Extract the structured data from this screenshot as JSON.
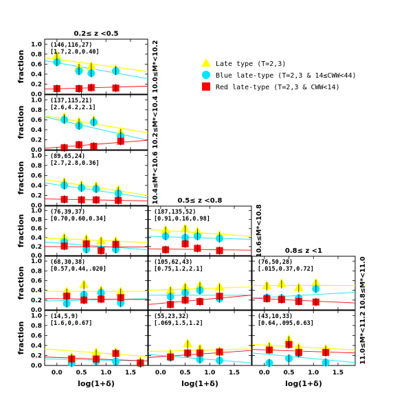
{
  "chart_data": {
    "type": "scatter",
    "xlabel": "log(1+δ)",
    "ylabel": "fraction",
    "xlim": [
      -0.25,
      1.85
    ],
    "ylim": [
      0,
      1.1
    ],
    "x_ticks": [
      "0.0",
      "0.5",
      "1.0",
      "1.5"
    ],
    "y_ticks": [
      "0.0",
      "0.2",
      "0.4",
      "0.6",
      "0.8",
      "1.0"
    ],
    "column_titles": [
      "0.2≤ z <0.5",
      "0.5≤ z <0.8",
      "0.8≤ z <1"
    ],
    "row_labels": [
      "10.0≤M*<10.2",
      "10.2≤M*<10.4",
      "10.4≤M*<10.6",
      "10.6≤M*<10.8",
      "10.8≤M*<11.0",
      "11.0≤M*<11.2"
    ],
    "legend": [
      {
        "name": "Late type (T=2,3)",
        "color": "#ffff00",
        "marker": "triangle"
      },
      {
        "name": "Blue late-type (T=2,3 & 14≤CWW<44)",
        "color": "#00e5ff",
        "marker": "circle"
      },
      {
        "name": "Red late-type (T=2,3 & CWW<14)",
        "color": "#ff0000",
        "marker": "square"
      }
    ],
    "panels": [
      {
        "row": 0,
        "col": 0,
        "ann1": "(146,116,27)",
        "ann2": "[1.7,2.0,0.40]",
        "late": {
          "x": [
            0.0,
            0.45,
            0.7,
            1.2
          ],
          "y": [
            0.75,
            0.52,
            0.54,
            0.48
          ]
        },
        "blue": {
          "x": [
            0.0,
            0.45,
            0.7,
            1.2
          ],
          "y": [
            0.64,
            0.46,
            0.42,
            0.46
          ]
        },
        "red": {
          "x": [
            0.0,
            0.45,
            0.7,
            1.2
          ],
          "y": [
            0.11,
            0.11,
            0.13,
            0.12
          ]
        },
        "fit_late": [
          0.73,
          0.45
        ],
        "fit_blue": [
          0.67,
          0.31
        ],
        "fit_red": [
          0.1,
          0.16
        ]
      },
      {
        "row": 1,
        "col": 0,
        "ann1": "(137,115,21)",
        "ann2": "[2.6,4.2,2.1]",
        "late": {
          "x": [
            0.15,
            0.45,
            0.75,
            1.3
          ],
          "y": [
            0.63,
            0.54,
            0.58,
            0.33
          ]
        },
        "blue": {
          "x": [
            0.15,
            0.45,
            0.75,
            1.3
          ],
          "y": [
            0.6,
            0.48,
            0.55,
            0.27
          ]
        },
        "red": {
          "x": [
            0.15,
            0.45,
            0.75,
            1.3
          ],
          "y": [
            0.04,
            0.1,
            0.07,
            0.17
          ]
        },
        "fit_late": [
          0.68,
          0.34
        ],
        "fit_blue": [
          0.66,
          0.19
        ],
        "fit_red": [
          0.03,
          0.19
        ]
      },
      {
        "row": 2,
        "col": 0,
        "ann1": "(89,65,24)",
        "ann2": "[2.7,2.8,0.36]",
        "late": {
          "x": [
            0.15,
            0.5,
            0.8,
            1.25
          ],
          "y": [
            0.45,
            0.39,
            0.37,
            0.29
          ]
        },
        "blue": {
          "x": [
            0.15,
            0.5,
            0.8,
            1.25
          ],
          "y": [
            0.4,
            0.35,
            0.33,
            0.24
          ]
        },
        "red": {
          "x": [
            0.15,
            0.5,
            0.8,
            1.25
          ],
          "y": [
            0.12,
            0.11,
            0.11,
            0.1
          ]
        },
        "fit_late": [
          0.52,
          0.2
        ],
        "fit_blue": [
          0.45,
          0.15
        ],
        "fit_red": [
          0.13,
          0.09
        ]
      },
      {
        "row": 3,
        "col": 0,
        "ann1": "(76,39,37)",
        "ann2": "[0.70,0.60,0.34]",
        "late": {
          "x": [
            0.15,
            0.6,
            0.9,
            1.2
          ],
          "y": [
            0.38,
            0.35,
            0.31,
            0.3
          ]
        },
        "blue": {
          "x": [
            0.15,
            0.6,
            0.9,
            1.2
          ],
          "y": [
            0.3,
            0.14,
            0.14,
            0.14
          ]
        },
        "red": {
          "x": [
            0.15,
            0.6,
            0.9,
            1.2
          ],
          "y": [
            0.21,
            0.26,
            0.11,
            0.25
          ]
        },
        "fit_late": [
          0.39,
          0.29
        ],
        "fit_blue": [
          0.3,
          0.13
        ],
        "fit_red": [
          0.2,
          0.19
        ]
      },
      {
        "row": 4,
        "col": 0,
        "ann1": "(68,30,38)",
        "ann2": "[0.57,0.44,.020]",
        "late": {
          "x": [
            0.2,
            0.55,
            0.9,
            1.3
          ],
          "y": [
            0.35,
            0.5,
            0.38,
            0.35
          ]
        },
        "blue": {
          "x": [
            0.2,
            0.55,
            0.9,
            1.3
          ],
          "y": [
            0.13,
            0.31,
            0.35,
            0.14
          ]
        },
        "red": {
          "x": [
            0.2,
            0.55,
            0.9,
            1.3
          ],
          "y": [
            0.28,
            0.2,
            0.22,
            0.25
          ]
        },
        "fit_late": [
          0.38,
          0.38
        ],
        "fit_blue": [
          0.18,
          0.23
        ],
        "fit_red": [
          0.23,
          0.21
        ]
      },
      {
        "row": 5,
        "col": 0,
        "ann1": "(14,5,9)",
        "ann2": "[1.6,0,0.67]",
        "late": {
          "x": [
            0.3,
            0.8,
            1.2,
            1.7
          ],
          "y": [
            0.15,
            0.24,
            0.25,
            0.07
          ]
        },
        "blue": {
          "x": [
            0.3,
            0.8,
            1.2,
            1.7
          ],
          "y": [
            0.05,
            0.09,
            0.08,
            0.04
          ]
        },
        "red": {
          "x": [
            0.3,
            0.8,
            1.2,
            1.7
          ],
          "y": [
            0.13,
            0.13,
            0.24,
            0.05
          ]
        },
        "fit_late": [
          0.33,
          0.18
        ],
        "fit_blue": [
          0.13,
          0.09
        ],
        "fit_red": [
          0.17,
          0.09
        ]
      },
      {
        "row": 3,
        "col": 1,
        "ann1": "(187,135,52)",
        "ann2": "[0.91,0.16,0.98]",
        "late": {
          "x": [
            0.1,
            0.5,
            0.75,
            1.2
          ],
          "y": [
            0.55,
            0.58,
            0.51,
            0.43
          ]
        },
        "blue": {
          "x": [
            0.1,
            0.5,
            0.75,
            1.2
          ],
          "y": [
            0.43,
            0.4,
            0.43,
            0.38
          ]
        },
        "red": {
          "x": [
            0.1,
            0.5,
            0.75,
            1.2
          ],
          "y": [
            0.13,
            0.26,
            0.16,
            0.11
          ]
        },
        "fit_late": [
          0.58,
          0.43
        ],
        "fit_blue": [
          0.43,
          0.36
        ],
        "fit_red": [
          0.15,
          0.12
        ]
      },
      {
        "row": 4,
        "col": 1,
        "ann1": "(105,62,43)",
        "ann2": "[0.75,1.2,2.1]",
        "late": {
          "x": [
            0.2,
            0.5,
            0.8,
            1.2
          ],
          "y": [
            0.38,
            0.45,
            0.48,
            0.45
          ]
        },
        "blue": {
          "x": [
            0.2,
            0.5,
            0.8,
            1.2
          ],
          "y": [
            0.27,
            0.35,
            0.4,
            0.23
          ]
        },
        "red": {
          "x": [
            0.2,
            0.5,
            0.8,
            1.2
          ],
          "y": [
            0.11,
            0.2,
            0.17,
            0.28
          ]
        },
        "fit_late": [
          0.4,
          0.47
        ],
        "fit_blue": [
          0.3,
          0.3
        ],
        "fit_red": [
          0.11,
          0.3
        ]
      },
      {
        "row": 5,
        "col": 1,
        "ann1": "(55,23,32)",
        "ann2": "[.069,1.5,1.2]",
        "late": {
          "x": [
            0.2,
            0.55,
            0.8,
            1.2
          ],
          "y": [
            0.22,
            0.42,
            0.32,
            0.27
          ]
        },
        "blue": {
          "x": [
            0.2,
            0.55,
            0.8,
            1.2
          ],
          "y": [
            0.16,
            0.24,
            0.12,
            0.1
          ]
        },
        "red": {
          "x": [
            0.2,
            0.55,
            0.8,
            1.2
          ],
          "y": [
            0.17,
            0.25,
            0.25,
            0.27
          ]
        },
        "fit_late": [
          0.28,
          0.33
        ],
        "fit_blue": [
          0.22,
          0.05
        ],
        "fit_red": [
          0.16,
          0.3
        ]
      },
      {
        "row": 4,
        "col": 2,
        "ann1": "(76,50,28)",
        "ann2": "[.015,0.37,0.72]",
        "late": {
          "x": [
            0.05,
            0.35,
            0.7,
            1.05
          ],
          "y": [
            0.48,
            0.52,
            0.44,
            0.53
          ]
        },
        "blue": {
          "x": [
            0.05,
            0.35,
            0.7,
            1.05
          ],
          "y": [
            0.25,
            0.24,
            0.24,
            0.43
          ]
        },
        "red": {
          "x": [
            0.05,
            0.35,
            0.7,
            1.05
          ],
          "y": [
            0.23,
            0.21,
            0.17,
            0.16
          ]
        },
        "fit_late": [
          0.5,
          0.5
        ],
        "fit_blue": [
          0.24,
          0.36
        ],
        "fit_red": [
          0.24,
          0.14
        ]
      },
      {
        "row": 5,
        "col": 2,
        "ann1": "(43,10,33)",
        "ann2": "[0.64,.095,0.63]",
        "late": {
          "x": [
            0.1,
            0.5,
            0.7,
            1.25
          ],
          "y": [
            0.37,
            0.5,
            0.34,
            0.31
          ]
        },
        "blue": {
          "x": [
            0.1,
            0.5,
            0.7,
            1.25
          ],
          "y": [
            0.05,
            0.14,
            0.24,
            0.06
          ]
        },
        "red": {
          "x": [
            0.1,
            0.5,
            0.7,
            1.25
          ],
          "y": [
            0.31,
            0.42,
            0.26,
            0.26
          ]
        },
        "fit_late": [
          0.42,
          0.31
        ],
        "fit_blue": [
          0.25,
          0.06
        ],
        "fit_red": [
          0.32,
          0.25
        ]
      }
    ]
  }
}
